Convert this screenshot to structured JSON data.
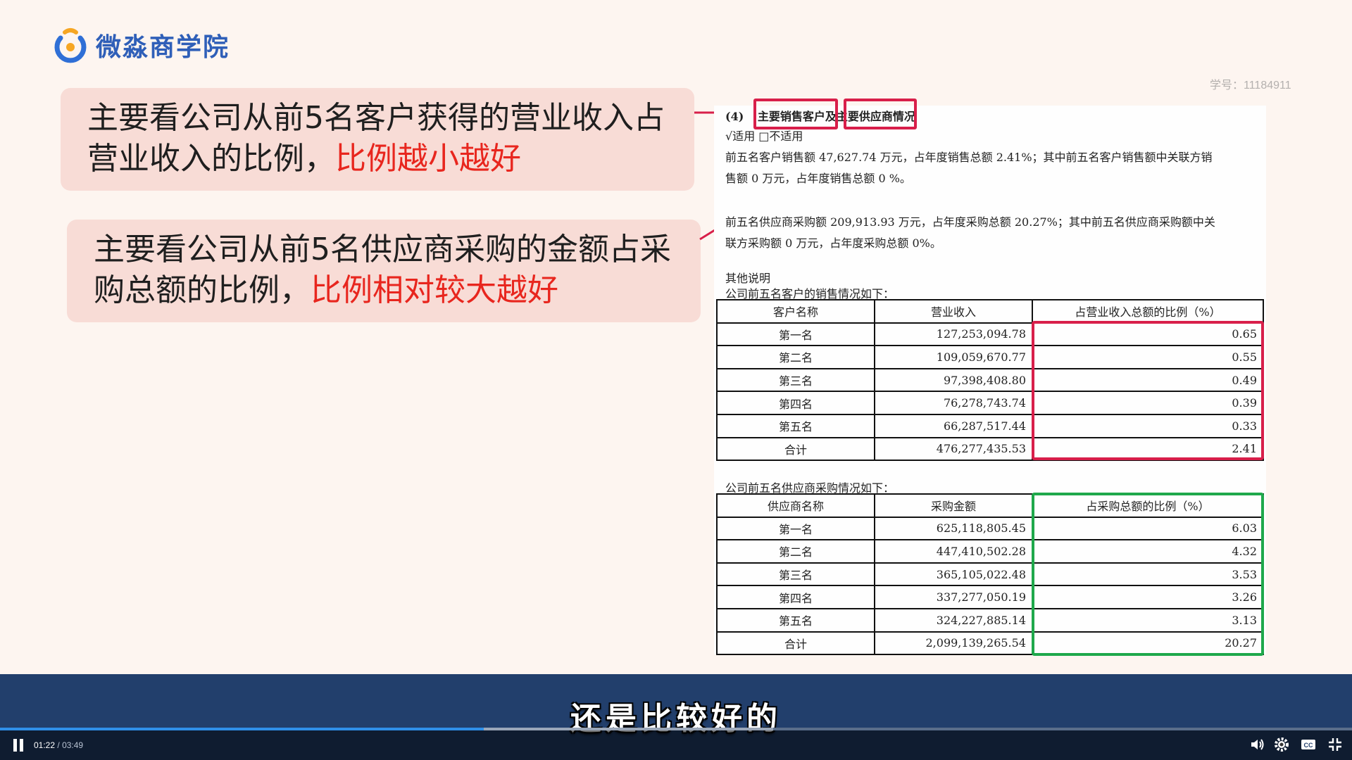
{
  "brand": {
    "name": "微淼商学院",
    "logo_icon": "brand-logo-icon",
    "colors": {
      "blue": "#2f6fd6",
      "orange": "#f6a623"
    }
  },
  "student_id": "学号：11184911",
  "callouts": [
    {
      "text": "主要看公司从前5名客户获得的营业收入占营业收入的比例，",
      "highlight": "比例越小越好"
    },
    {
      "text": "主要看公司从前5名供应商采购的金额占采购总额的比例，",
      "highlight": "比例相对较大越好"
    }
  ],
  "document": {
    "heading_prefix": "(4)",
    "heading_part1": "主要销售客户",
    "heading_mid": "及",
    "heading_part2": "主要供应商",
    "heading_suffix": "情况",
    "applicability": "√适用 □不适用",
    "customer_summary_line1": "前五名客户销售额 47,627.74 万元，占年度销售总额 2.41%；其中前五名客户销售额中关联方销",
    "customer_summary_line2": "售额 0 万元，占年度销售总额 0 %。",
    "supplier_summary_line1": "前五名供应商采购额 209,913.93 万元，占年度采购总额 20.27%；其中前五名供应商采购额中关",
    "supplier_summary_line2": "联方采购额 0 万元，占年度采购总额 0%。",
    "other_notes": "其他说明",
    "customer_table_title": "公司前五名客户的销售情况如下：",
    "customer_table": {
      "headers": [
        "客户名称",
        "营业收入",
        "占营业收入总额的比例（%）"
      ],
      "rows": [
        [
          "第一名",
          "127,253,094.78",
          "0.65"
        ],
        [
          "第二名",
          "109,059,670.77",
          "0.55"
        ],
        [
          "第三名",
          "97,398,408.80",
          "0.49"
        ],
        [
          "第四名",
          "76,278,743.74",
          "0.39"
        ],
        [
          "第五名",
          "66,287,517.44",
          "0.33"
        ],
        [
          "合计",
          "476,277,435.53",
          "2.41"
        ]
      ]
    },
    "supplier_table_title": "公司前五名供应商采购情况如下：",
    "supplier_table": {
      "headers": [
        "供应商名称",
        "采购金额",
        "占采购总额的比例（%）"
      ],
      "rows": [
        [
          "第一名",
          "625,118,805.45",
          "6.03"
        ],
        [
          "第二名",
          "447,410,502.28",
          "4.32"
        ],
        [
          "第三名",
          "365,105,022.48",
          "3.53"
        ],
        [
          "第四名",
          "337,277,050.19",
          "3.26"
        ],
        [
          "第五名",
          "324,227,885.14",
          "3.13"
        ],
        [
          "合计",
          "2,099,139,265.54",
          "20.27"
        ]
      ]
    }
  },
  "highlight_colors": {
    "customer": "#d81f4a",
    "supplier": "#1fa84b",
    "callout_text": "#e8261e"
  },
  "video": {
    "subtitle": "还是比较好的",
    "current_time": "01:22",
    "separator": "/",
    "duration": "03:49",
    "progress_fraction": 0.358,
    "buffered_fraction": 0.572,
    "icons": [
      "pause-icon",
      "volume-icon",
      "settings-icon",
      "subtitles-icon",
      "exit-fullscreen-icon"
    ]
  }
}
